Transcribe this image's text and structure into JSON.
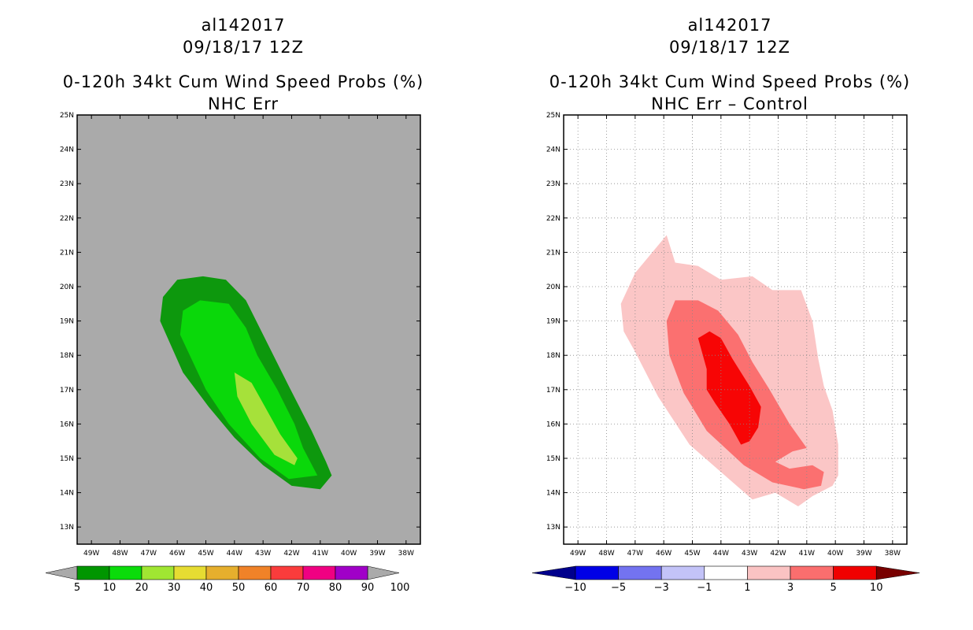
{
  "left_panel": {
    "storm_id": "al142017",
    "date": "09/18/17 12Z",
    "title": "0-120h 34kt Cum Wind Speed Probs (%)",
    "subtitle": "NHC Err"
  },
  "right_panel": {
    "storm_id": "al142017",
    "date": "09/18/17 12Z",
    "title": "0-120h 34kt Cum Wind Speed Probs (%)",
    "subtitle": "NHC Err – Control"
  },
  "chart_data": [
    {
      "type": "heatmap",
      "title": "0-120h 34kt Cum Wind Speed Probs (%)",
      "subtitle": "NHC Err",
      "x_ticks": [
        "49W",
        "48W",
        "47W",
        "46W",
        "45W",
        "44W",
        "43W",
        "42W",
        "41W",
        "40W",
        "39W",
        "38W"
      ],
      "y_ticks": [
        "13N",
        "14N",
        "15N",
        "16N",
        "17N",
        "18N",
        "19N",
        "20N",
        "21N",
        "22N",
        "23N",
        "24N",
        "25N"
      ],
      "xlim": [
        -49.5,
        -37.5
      ],
      "ylim": [
        12.5,
        25
      ],
      "grid": false,
      "background_color": "#aaaaaa",
      "colorbar": {
        "labels": [
          "5",
          "10",
          "20",
          "30",
          "40",
          "50",
          "60",
          "70",
          "80",
          "90",
          "100"
        ],
        "colors": [
          "#009600",
          "#0adc0a",
          "#a0e632",
          "#e6dc32",
          "#e6af2d",
          "#f08228",
          "#fa3c3c",
          "#f00082",
          "#a000c8"
        ],
        "end_color": "#aaaaaa"
      },
      "contours": [
        {
          "level": "5-10",
          "color": "#0d980d",
          "points": [
            [
              -46.6,
              19.0
            ],
            [
              -46.5,
              19.7
            ],
            [
              -46.0,
              20.2
            ],
            [
              -45.1,
              20.3
            ],
            [
              -44.3,
              20.2
            ],
            [
              -43.6,
              19.6
            ],
            [
              -43.0,
              18.6
            ],
            [
              -42.1,
              17.1
            ],
            [
              -41.3,
              15.8
            ],
            [
              -40.8,
              14.9
            ],
            [
              -40.6,
              14.5
            ],
            [
              -41.0,
              14.1
            ],
            [
              -42.0,
              14.2
            ],
            [
              -43.0,
              14.8
            ],
            [
              -44.0,
              15.6
            ],
            [
              -44.9,
              16.5
            ],
            [
              -45.8,
              17.5
            ]
          ]
        },
        {
          "level": "10-20",
          "color": "#0ad80a",
          "points": [
            [
              -45.9,
              18.6
            ],
            [
              -45.8,
              19.3
            ],
            [
              -45.2,
              19.6
            ],
            [
              -44.2,
              19.5
            ],
            [
              -43.6,
              18.8
            ],
            [
              -43.2,
              18.0
            ],
            [
              -42.5,
              17.0
            ],
            [
              -41.9,
              16.0
            ],
            [
              -41.6,
              15.3
            ],
            [
              -41.1,
              14.5
            ],
            [
              -42.1,
              14.4
            ],
            [
              -43.1,
              15.0
            ],
            [
              -44.2,
              16.0
            ],
            [
              -45.0,
              17.0
            ]
          ]
        },
        {
          "level": "20-30",
          "color": "#a6e13a",
          "points": [
            [
              -44.0,
              17.5
            ],
            [
              -43.4,
              17.2
            ],
            [
              -43.0,
              16.6
            ],
            [
              -42.4,
              15.7
            ],
            [
              -41.8,
              15.0
            ],
            [
              -41.9,
              14.8
            ],
            [
              -42.6,
              15.1
            ],
            [
              -43.4,
              16.0
            ],
            [
              -43.9,
              16.8
            ]
          ]
        }
      ]
    },
    {
      "type": "heatmap",
      "title": "0-120h 34kt Cum Wind Speed Probs (%)",
      "subtitle": "NHC Err – Control",
      "x_ticks": [
        "49W",
        "48W",
        "47W",
        "46W",
        "45W",
        "44W",
        "43W",
        "42W",
        "41W",
        "40W",
        "39W",
        "38W"
      ],
      "y_ticks": [
        "13N",
        "14N",
        "15N",
        "16N",
        "17N",
        "18N",
        "19N",
        "20N",
        "21N",
        "22N",
        "23N",
        "24N",
        "25N"
      ],
      "xlim": [
        -49.5,
        -37.5
      ],
      "ylim": [
        12.5,
        25
      ],
      "grid": true,
      "background_color": "#ffffff",
      "colorbar": {
        "labels": [
          "-10",
          "-5",
          "-3",
          "-1",
          "1",
          "3",
          "5",
          "10"
        ],
        "colors": [
          "#0000e6",
          "#7373f0",
          "#c3c3f8",
          "#ffffff",
          "#fac3c3",
          "#fa6e6e",
          "#f00000"
        ],
        "start_color": "#00008c",
        "end_color": "#780000"
      },
      "contours": [
        {
          "level": "1-3",
          "color": "#fbc6c6",
          "points": [
            [
              -47.5,
              19.5
            ],
            [
              -47.0,
              20.4
            ],
            [
              -46.5,
              20.9
            ],
            [
              -45.9,
              21.5
            ],
            [
              -45.6,
              20.7
            ],
            [
              -44.8,
              20.6
            ],
            [
              -44.0,
              20.2
            ],
            [
              -42.9,
              20.3
            ],
            [
              -42.2,
              19.9
            ],
            [
              -41.2,
              19.9
            ],
            [
              -40.8,
              19.0
            ],
            [
              -40.6,
              17.9
            ],
            [
              -40.4,
              17.1
            ],
            [
              -40.1,
              16.4
            ],
            [
              -39.9,
              15.4
            ],
            [
              -39.9,
              14.5
            ],
            [
              -40.1,
              14.2
            ],
            [
              -40.8,
              13.9
            ],
            [
              -41.3,
              13.6
            ],
            [
              -42.1,
              14.0
            ],
            [
              -42.9,
              13.8
            ],
            [
              -44.0,
              14.6
            ],
            [
              -45.1,
              15.4
            ],
            [
              -46.2,
              16.8
            ],
            [
              -47.0,
              18.1
            ],
            [
              -47.4,
              18.7
            ]
          ]
        },
        {
          "level": "3-5",
          "color": "#fb7070",
          "points": [
            [
              -45.9,
              19.0
            ],
            [
              -45.6,
              19.6
            ],
            [
              -44.8,
              19.6
            ],
            [
              -44.1,
              19.3
            ],
            [
              -43.4,
              18.6
            ],
            [
              -42.9,
              17.8
            ],
            [
              -42.3,
              17.0
            ],
            [
              -41.6,
              16.0
            ],
            [
              -41.0,
              15.3
            ],
            [
              -41.5,
              15.2
            ],
            [
              -42.1,
              14.9
            ],
            [
              -41.6,
              14.7
            ],
            [
              -40.8,
              14.8
            ],
            [
              -40.4,
              14.6
            ],
            [
              -40.5,
              14.2
            ],
            [
              -41.1,
              14.1
            ],
            [
              -42.2,
              14.3
            ],
            [
              -43.2,
              14.8
            ],
            [
              -44.5,
              15.8
            ],
            [
              -45.3,
              16.9
            ],
            [
              -45.8,
              18.0
            ]
          ]
        },
        {
          "level": "5-10",
          "color": "#f70505",
          "points": [
            [
              -44.8,
              18.5
            ],
            [
              -44.4,
              18.7
            ],
            [
              -44.0,
              18.5
            ],
            [
              -43.6,
              17.9
            ],
            [
              -43.0,
              17.1
            ],
            [
              -42.6,
              16.5
            ],
            [
              -42.7,
              15.9
            ],
            [
              -43.0,
              15.5
            ],
            [
              -43.3,
              15.4
            ],
            [
              -43.7,
              16.0
            ],
            [
              -44.2,
              16.6
            ],
            [
              -44.5,
              17.0
            ],
            [
              -44.5,
              17.6
            ]
          ]
        }
      ]
    }
  ]
}
